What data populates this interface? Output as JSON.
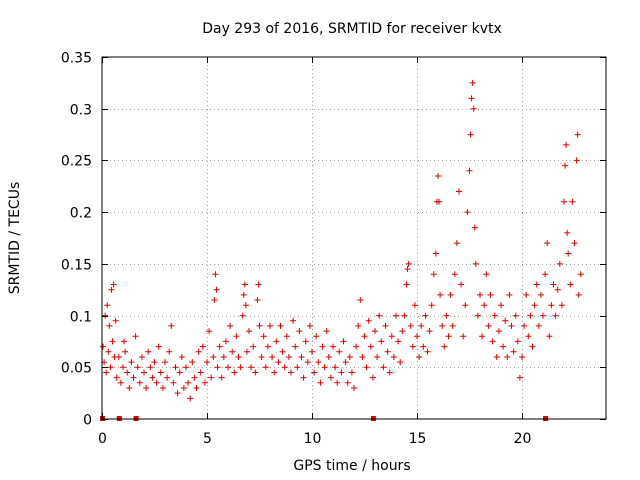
{
  "chart_data": {
    "type": "scatter",
    "title": "Day 293 of 2016, SRMTID for receiver kvtx",
    "xlabel": "GPS time / hours",
    "ylabel": "SRMTID / TECUs",
    "xlim": [
      0,
      24
    ],
    "ylim": [
      0,
      0.35
    ],
    "x_ticks": [
      0,
      5,
      10,
      15,
      20
    ],
    "x_tick_labels": [
      "0",
      "5",
      "10",
      "15",
      "20"
    ],
    "y_ticks": [
      0,
      0.05,
      0.1,
      0.15,
      0.2,
      0.25,
      0.3,
      0.35
    ],
    "y_tick_labels": [
      "0",
      "0.05",
      "0.1",
      "0.15",
      "0.2",
      "0.25",
      "0.3",
      "0.35"
    ],
    "grid": true,
    "marker": "+",
    "series_color": "#e00000",
    "series": [
      {
        "name": "SRMTID",
        "points": [
          [
            0.05,
            0.07
          ],
          [
            0.1,
            0.055
          ],
          [
            0.15,
            0.1
          ],
          [
            0.2,
            0.045
          ],
          [
            0.25,
            0.11
          ],
          [
            0.3,
            0.065
          ],
          [
            0.35,
            0.09
          ],
          [
            0.4,
            0.05
          ],
          [
            0.45,
            0.125
          ],
          [
            0.5,
            0.075
          ],
          [
            0.55,
            0.13
          ],
          [
            0.6,
            0.06
          ],
          [
            0.65,
            0.095
          ],
          [
            0.7,
            0.04
          ],
          [
            0.8,
            0.06
          ],
          [
            0.9,
            0.035
          ],
          [
            1.0,
            0.05
          ],
          [
            1.05,
            0.075
          ],
          [
            1.1,
            0.065
          ],
          [
            1.2,
            0.045
          ],
          [
            1.3,
            0.03
          ],
          [
            1.4,
            0.055
          ],
          [
            1.5,
            0.04
          ],
          [
            1.6,
            0.08
          ],
          [
            1.7,
            0.05
          ],
          [
            1.8,
            0.035
          ],
          [
            1.9,
            0.06
          ],
          [
            2.0,
            0.045
          ],
          [
            2.1,
            0.03
          ],
          [
            2.2,
            0.065
          ],
          [
            2.3,
            0.05
          ],
          [
            2.4,
            0.04
          ],
          [
            2.5,
            0.055
          ],
          [
            2.6,
            0.035
          ],
          [
            2.7,
            0.07
          ],
          [
            2.8,
            0.045
          ],
          [
            2.9,
            0.03
          ],
          [
            3.0,
            0.055
          ],
          [
            3.1,
            0.04
          ],
          [
            3.2,
            0.065
          ],
          [
            3.3,
            0.09
          ],
          [
            3.4,
            0.035
          ],
          [
            3.5,
            0.05
          ],
          [
            3.6,
            0.025
          ],
          [
            3.7,
            0.045
          ],
          [
            3.8,
            0.06
          ],
          [
            3.9,
            0.03
          ],
          [
            4.0,
            0.05
          ],
          [
            4.1,
            0.035
          ],
          [
            4.2,
            0.02
          ],
          [
            4.3,
            0.055
          ],
          [
            4.4,
            0.04
          ],
          [
            4.5,
            0.03
          ],
          [
            4.6,
            0.065
          ],
          [
            4.7,
            0.045
          ],
          [
            4.8,
            0.07
          ],
          [
            4.9,
            0.035
          ],
          [
            5.0,
            0.055
          ],
          [
            5.1,
            0.085
          ],
          [
            5.2,
            0.04
          ],
          [
            5.3,
            0.06
          ],
          [
            5.35,
            0.115
          ],
          [
            5.4,
            0.14
          ],
          [
            5.45,
            0.125
          ],
          [
            5.5,
            0.05
          ],
          [
            5.6,
            0.07
          ],
          [
            5.7,
            0.04
          ],
          [
            5.8,
            0.06
          ],
          [
            5.9,
            0.075
          ],
          [
            6.0,
            0.05
          ],
          [
            6.1,
            0.09
          ],
          [
            6.2,
            0.065
          ],
          [
            6.3,
            0.045
          ],
          [
            6.4,
            0.08
          ],
          [
            6.5,
            0.06
          ],
          [
            6.6,
            0.05
          ],
          [
            6.7,
            0.1
          ],
          [
            6.75,
            0.12
          ],
          [
            6.8,
            0.13
          ],
          [
            6.85,
            0.11
          ],
          [
            6.9,
            0.065
          ],
          [
            7.0,
            0.085
          ],
          [
            7.1,
            0.05
          ],
          [
            7.2,
            0.07
          ],
          [
            7.3,
            0.045
          ],
          [
            7.4,
            0.115
          ],
          [
            7.45,
            0.13
          ],
          [
            7.5,
            0.09
          ],
          [
            7.6,
            0.06
          ],
          [
            7.7,
            0.08
          ],
          [
            7.8,
            0.05
          ],
          [
            7.9,
            0.07
          ],
          [
            8.0,
            0.09
          ],
          [
            8.1,
            0.06
          ],
          [
            8.2,
            0.045
          ],
          [
            8.3,
            0.075
          ],
          [
            8.4,
            0.055
          ],
          [
            8.5,
            0.09
          ],
          [
            8.6,
            0.065
          ],
          [
            8.7,
            0.05
          ],
          [
            8.8,
            0.08
          ],
          [
            8.9,
            0.06
          ],
          [
            9.0,
            0.045
          ],
          [
            9.1,
            0.095
          ],
          [
            9.2,
            0.07
          ],
          [
            9.3,
            0.05
          ],
          [
            9.4,
            0.085
          ],
          [
            9.5,
            0.06
          ],
          [
            9.6,
            0.04
          ],
          [
            9.7,
            0.075
          ],
          [
            9.8,
            0.055
          ],
          [
            9.9,
            0.09
          ],
          [
            10.0,
            0.065
          ],
          [
            10.1,
            0.045
          ],
          [
            10.2,
            0.08
          ],
          [
            10.3,
            0.055
          ],
          [
            10.4,
            0.035
          ],
          [
            10.5,
            0.07
          ],
          [
            10.6,
            0.05
          ],
          [
            10.7,
            0.085
          ],
          [
            10.8,
            0.06
          ],
          [
            10.9,
            0.04
          ],
          [
            11.0,
            0.07
          ],
          [
            11.1,
            0.05
          ],
          [
            11.2,
            0.035
          ],
          [
            11.3,
            0.065
          ],
          [
            11.4,
            0.045
          ],
          [
            11.5,
            0.075
          ],
          [
            11.6,
            0.055
          ],
          [
            11.7,
            0.035
          ],
          [
            11.8,
            0.06
          ],
          [
            11.9,
            0.045
          ],
          [
            12.0,
            0.03
          ],
          [
            12.1,
            0.07
          ],
          [
            12.2,
            0.09
          ],
          [
            12.3,
            0.115
          ],
          [
            12.4,
            0.06
          ],
          [
            12.5,
            0.08
          ],
          [
            12.6,
            0.05
          ],
          [
            12.7,
            0.095
          ],
          [
            12.8,
            0.07
          ],
          [
            12.9,
            0.04
          ],
          [
            13.0,
            0.085
          ],
          [
            13.1,
            0.06
          ],
          [
            13.2,
            0.1
          ],
          [
            13.3,
            0.075
          ],
          [
            13.4,
            0.05
          ],
          [
            13.5,
            0.09
          ],
          [
            13.6,
            0.065
          ],
          [
            13.7,
            0.045
          ],
          [
            13.8,
            0.08
          ],
          [
            13.9,
            0.06
          ],
          [
            14.0,
            0.1
          ],
          [
            14.1,
            0.075
          ],
          [
            14.2,
            0.055
          ],
          [
            14.3,
            0.085
          ],
          [
            14.4,
            0.1
          ],
          [
            14.5,
            0.13
          ],
          [
            14.55,
            0.145
          ],
          [
            14.6,
            0.15
          ],
          [
            14.7,
            0.09
          ],
          [
            14.8,
            0.07
          ],
          [
            14.9,
            0.11
          ],
          [
            15.0,
            0.08
          ],
          [
            15.1,
            0.06
          ],
          [
            15.2,
            0.09
          ],
          [
            15.3,
            0.07
          ],
          [
            15.4,
            0.1
          ],
          [
            15.5,
            0.065
          ],
          [
            15.6,
            0.085
          ],
          [
            15.7,
            0.11
          ],
          [
            15.8,
            0.14
          ],
          [
            15.9,
            0.16
          ],
          [
            15.95,
            0.21
          ],
          [
            16.0,
            0.235
          ],
          [
            16.05,
            0.21
          ],
          [
            16.1,
            0.12
          ],
          [
            16.2,
            0.09
          ],
          [
            16.3,
            0.07
          ],
          [
            16.4,
            0.1
          ],
          [
            16.5,
            0.08
          ],
          [
            16.6,
            0.12
          ],
          [
            16.7,
            0.09
          ],
          [
            16.8,
            0.14
          ],
          [
            16.9,
            0.17
          ],
          [
            17.0,
            0.22
          ],
          [
            17.1,
            0.13
          ],
          [
            17.2,
            0.08
          ],
          [
            17.3,
            0.11
          ],
          [
            17.4,
            0.2
          ],
          [
            17.5,
            0.24
          ],
          [
            17.55,
            0.275
          ],
          [
            17.6,
            0.31
          ],
          [
            17.65,
            0.325
          ],
          [
            17.7,
            0.3
          ],
          [
            17.75,
            0.185
          ],
          [
            17.8,
            0.15
          ],
          [
            17.9,
            0.1
          ],
          [
            18.0,
            0.12
          ],
          [
            18.1,
            0.08
          ],
          [
            18.2,
            0.11
          ],
          [
            18.3,
            0.14
          ],
          [
            18.4,
            0.09
          ],
          [
            18.5,
            0.12
          ],
          [
            18.6,
            0.075
          ],
          [
            18.7,
            0.1
          ],
          [
            18.8,
            0.06
          ],
          [
            18.9,
            0.085
          ],
          [
            19.0,
            0.11
          ],
          [
            19.1,
            0.07
          ],
          [
            19.2,
            0.095
          ],
          [
            19.3,
            0.06
          ],
          [
            19.4,
            0.12
          ],
          [
            19.5,
            0.09
          ],
          [
            19.6,
            0.065
          ],
          [
            19.7,
            0.1
          ],
          [
            19.8,
            0.075
          ],
          [
            19.9,
            0.04
          ],
          [
            20.0,
            0.06
          ],
          [
            20.1,
            0.09
          ],
          [
            20.2,
            0.12
          ],
          [
            20.3,
            0.08
          ],
          [
            20.4,
            0.1
          ],
          [
            20.5,
            0.07
          ],
          [
            20.6,
            0.11
          ],
          [
            20.7,
            0.13
          ],
          [
            20.8,
            0.09
          ],
          [
            20.9,
            0.12
          ],
          [
            21.0,
            0.1
          ],
          [
            21.1,
            0.14
          ],
          [
            21.2,
            0.17
          ],
          [
            21.3,
            0.08
          ],
          [
            21.4,
            0.11
          ],
          [
            21.5,
            0.13
          ],
          [
            21.6,
            0.1
          ],
          [
            21.7,
            0.125
          ],
          [
            21.8,
            0.15
          ],
          [
            21.9,
            0.11
          ],
          [
            22.0,
            0.21
          ],
          [
            22.05,
            0.245
          ],
          [
            22.1,
            0.265
          ],
          [
            22.15,
            0.18
          ],
          [
            22.2,
            0.16
          ],
          [
            22.3,
            0.13
          ],
          [
            22.4,
            0.21
          ],
          [
            22.5,
            0.17
          ],
          [
            22.6,
            0.25
          ],
          [
            22.65,
            0.275
          ],
          [
            22.7,
            0.12
          ],
          [
            22.8,
            0.14
          ]
        ]
      }
    ],
    "x_axis_markers": [
      0.0,
      0.8,
      1.6,
      12.9,
      21.1
    ]
  }
}
